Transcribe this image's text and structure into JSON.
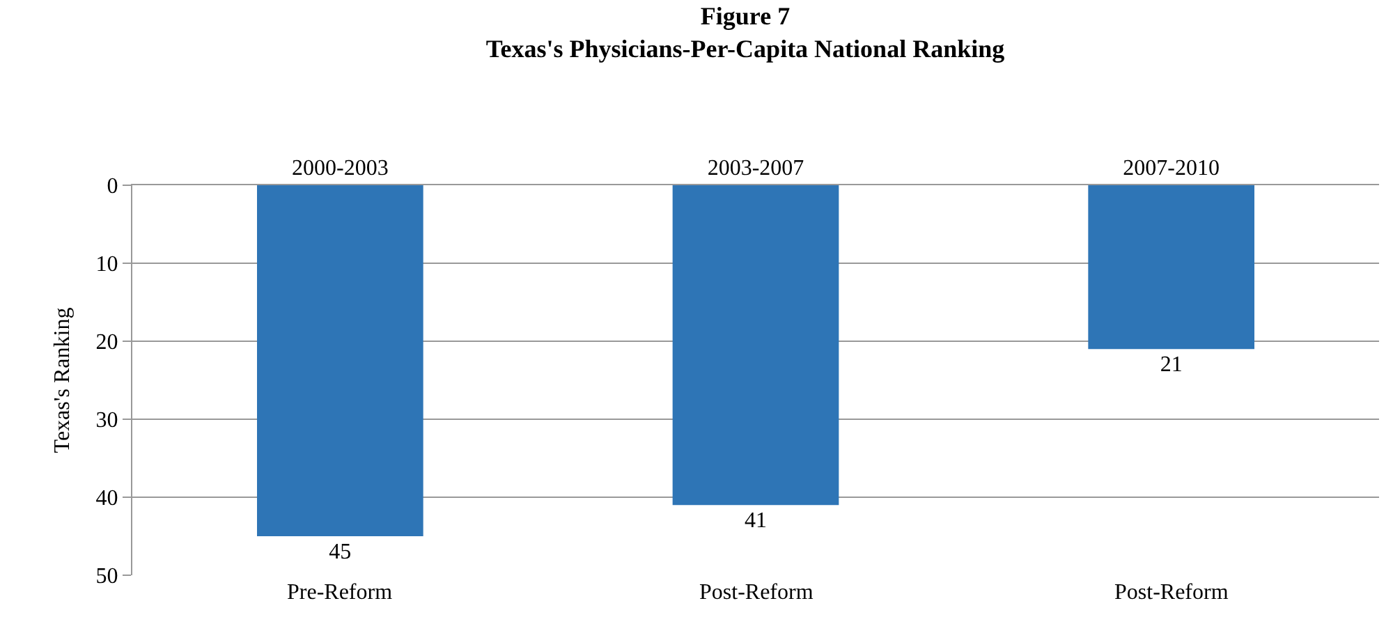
{
  "chart_data": {
    "type": "bar",
    "title": "Figure 7",
    "subtitle": "Texas's Physicians-Per-Capita National Ranking",
    "ylabel": "Texas's Ranking",
    "categories": [
      "2000-2003",
      "2003-2007",
      "2007-2010"
    ],
    "values": [
      45,
      41,
      21
    ],
    "color": "#2e75b6",
    "data_labels": true,
    "ylim": [
      50,
      0
    ],
    "yticks": [
      0,
      10,
      20,
      30,
      40,
      50
    ],
    "grid": "y",
    "annotations": [
      "Pre-Reform",
      "Post-Reform",
      "Post-Reform"
    ]
  }
}
